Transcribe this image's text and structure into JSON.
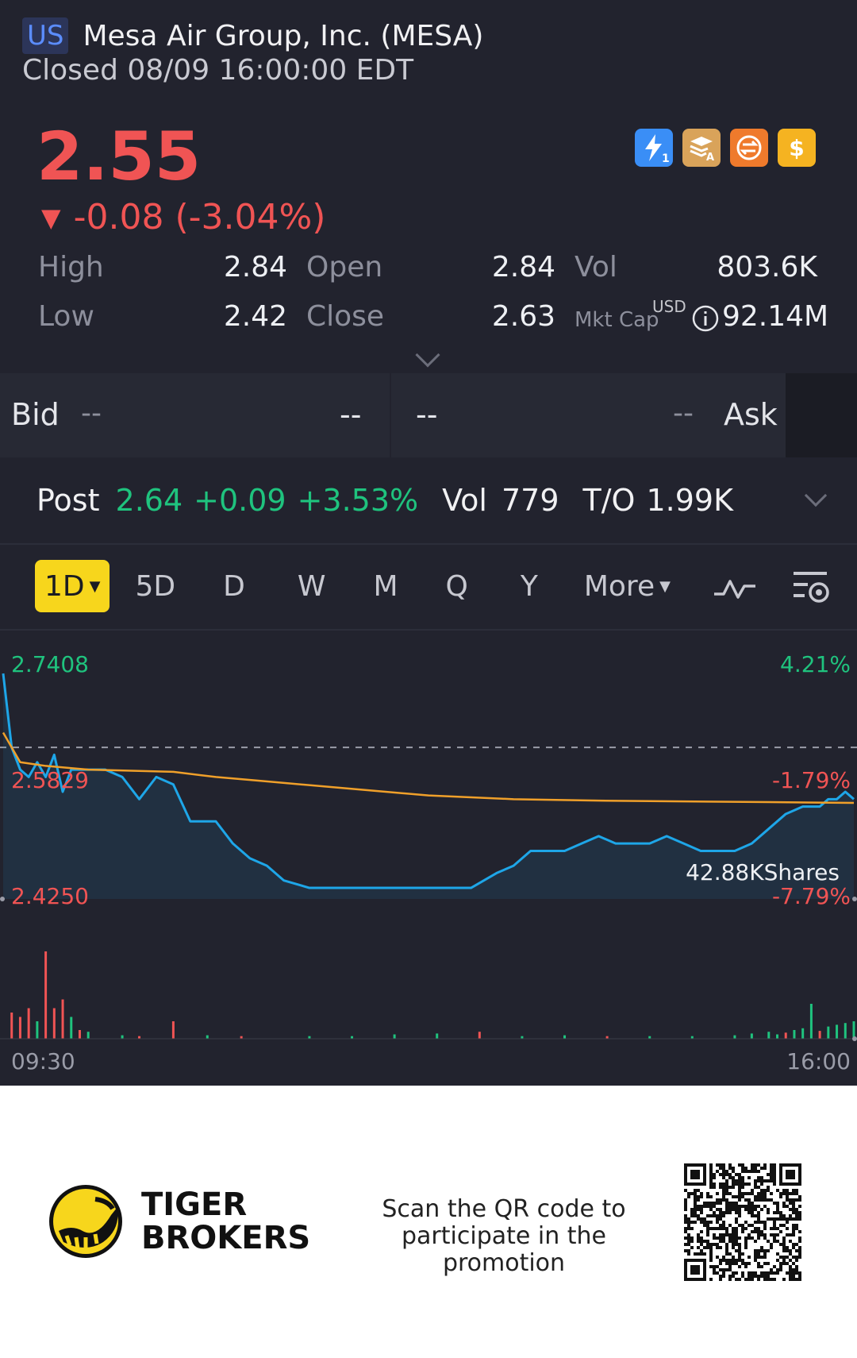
{
  "header": {
    "market": "US",
    "name": "Mesa Air Group, Inc. (MESA)",
    "status": "Closed 08/09 16:00:00 EDT"
  },
  "quote": {
    "price": "2.55",
    "change": "-0.08 (-3.04%)",
    "direction_icon": "down-triangle-icon",
    "price_color": "#f05454"
  },
  "badges": [
    {
      "icon": "lightning-level1-icon",
      "color": "#3a8ef6"
    },
    {
      "icon": "stack-a-icon",
      "color": "#d9a35a"
    },
    {
      "icon": "swap-arrows-icon",
      "color": "#ef7a2c"
    },
    {
      "icon": "dollar-icon",
      "color": "#f5b321"
    }
  ],
  "stats": {
    "high_label": "High",
    "high": "2.84",
    "low_label": "Low",
    "low": "2.42",
    "open_label": "Open",
    "open": "2.84",
    "close_label": "Close",
    "close": "2.63",
    "vol_label": "Vol",
    "vol": "803.6K",
    "mktcap_label": "Mkt Cap",
    "mktcap_currency": "USD",
    "mktcap": "92.14M"
  },
  "bidask": {
    "bid_label": "Bid",
    "bid_price": "--",
    "bid_size": "--",
    "ask_price": "--",
    "ask_size": "--",
    "ask_label": "Ask"
  },
  "post": {
    "label": "Post",
    "price": "2.64",
    "change": "+0.09",
    "pct": "+3.53%",
    "vol_label": "Vol",
    "vol": "779",
    "to_label": "T/O",
    "to": "1.99K"
  },
  "tabs": [
    {
      "label": "1D",
      "active": true
    },
    {
      "label": "5D"
    },
    {
      "label": "D"
    },
    {
      "label": "W"
    },
    {
      "label": "M"
    },
    {
      "label": "Q"
    },
    {
      "label": "Y"
    },
    {
      "label": "More"
    }
  ],
  "chart_data": {
    "type": "line",
    "y_left_ticks": [
      "2.7408",
      "2.5829",
      "2.4250"
    ],
    "y_right_ticks": [
      "4.21%",
      "-1.79%",
      "-7.79%"
    ],
    "ylim": [
      2.425,
      2.7408
    ],
    "prev_close": 2.63,
    "x_start": "09:30",
    "x_end": "16:00",
    "volume_annotation": "42.88KShares",
    "series": [
      {
        "color": "#1ea6e8",
        "x": [
          0,
          1,
          2,
          3,
          4,
          5,
          6,
          7,
          8,
          10,
          12,
          14,
          16,
          18,
          20,
          22,
          25,
          27,
          29,
          31,
          33,
          36,
          38,
          40,
          42,
          44,
          46,
          48,
          50,
          52,
          55,
          58,
          60,
          62,
          64,
          66,
          68,
          70,
          72,
          74,
          76,
          78,
          80,
          82,
          84,
          86,
          88,
          90,
          92,
          94,
          96,
          97,
          98,
          99,
          100
        ],
        "values": [
          2.73,
          2.63,
          2.6,
          2.59,
          2.61,
          2.59,
          2.62,
          2.57,
          2.6,
          2.6,
          2.6,
          2.59,
          2.56,
          2.59,
          2.58,
          2.53,
          2.53,
          2.5,
          2.48,
          2.47,
          2.45,
          2.44,
          2.44,
          2.44,
          2.44,
          2.44,
          2.44,
          2.44,
          2.44,
          2.44,
          2.44,
          2.46,
          2.47,
          2.49,
          2.49,
          2.49,
          2.5,
          2.51,
          2.5,
          2.5,
          2.5,
          2.51,
          2.5,
          2.49,
          2.49,
          2.49,
          2.5,
          2.52,
          2.54,
          2.55,
          2.55,
          2.56,
          2.56,
          2.57,
          2.56
        ]
      },
      {
        "color": "#f0a02a",
        "x": [
          0,
          2,
          5,
          10,
          20,
          25,
          30,
          40,
          50,
          60,
          70,
          80,
          90,
          100
        ],
        "values": [
          2.65,
          2.61,
          2.605,
          2.6,
          2.597,
          2.59,
          2.585,
          2.575,
          2.565,
          2.56,
          2.558,
          2.557,
          2.556,
          2.555
        ]
      }
    ],
    "volume_bars": {
      "x": [
        1,
        2,
        3,
        4,
        5,
        6,
        7,
        8,
        9,
        10,
        14,
        16,
        20,
        24,
        28,
        36,
        41,
        46,
        51,
        56,
        61,
        66,
        71,
        76,
        81,
        86,
        88,
        90,
        91,
        92,
        93,
        94,
        95,
        96,
        97,
        98,
        99,
        100
      ],
      "values": [
        30,
        25,
        35,
        20,
        100,
        35,
        45,
        25,
        10,
        8,
        4,
        3,
        20,
        4,
        3,
        3,
        3,
        5,
        6,
        8,
        3,
        4,
        3,
        3,
        3,
        4,
        6,
        8,
        5,
        7,
        10,
        12,
        40,
        9,
        14,
        16,
        18,
        20
      ],
      "colors": [
        "#f05454",
        "#f05454",
        "#f05454",
        "#1fc37e",
        "#f05454",
        "#f05454",
        "#f05454",
        "#1fc37e",
        "#f05454",
        "#1fc37e",
        "#1fc37e",
        "#f05454",
        "#f05454",
        "#1fc37e",
        "#f05454",
        "#1fc37e",
        "#1fc37e",
        "#1fc37e",
        "#1fc37e",
        "#f05454",
        "#1fc37e",
        "#1fc37e",
        "#f05454",
        "#1fc37e",
        "#1fc37e",
        "#1fc37e",
        "#1fc37e",
        "#1fc37e",
        "#1fc37e",
        "#f05454",
        "#1fc37e",
        "#1fc37e",
        "#1fc37e",
        "#f05454",
        "#1fc37e",
        "#1fc37e",
        "#1fc37e",
        "#1fc37e"
      ]
    }
  },
  "footer": {
    "brand_line1": "TIGER",
    "brand_line2": "BROKERS",
    "promo_line1": "Scan the QR code to",
    "promo_line2": "participate in the promotion"
  }
}
